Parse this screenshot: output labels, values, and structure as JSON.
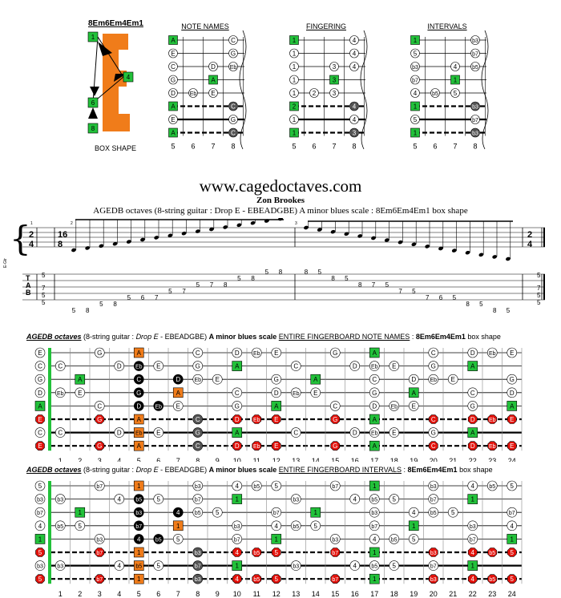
{
  "box": {
    "name": "8Em6Em4Em1",
    "caption": "BOX SHAPE",
    "markers": [
      "1",
      "4",
      "6",
      "8"
    ]
  },
  "diagrams": [
    {
      "title": "NOTE NAMES",
      "frets": [
        "5",
        "6",
        "7",
        "8"
      ],
      "rows": [
        [
          {
            "f": 0,
            "t": "A",
            "k": "root"
          },
          {
            "f": 3,
            "t": "C",
            "k": "open"
          }
        ],
        [
          {
            "f": 0,
            "t": "E",
            "k": "open"
          },
          {
            "f": 3,
            "t": "G",
            "k": "open"
          }
        ],
        [
          {
            "f": 0,
            "t": "C",
            "k": "open"
          },
          {
            "f": 2,
            "t": "D",
            "k": "open"
          },
          {
            "f": 3,
            "t": "Eb",
            "k": "open"
          }
        ],
        [
          {
            "f": 0,
            "t": "G",
            "k": "open"
          },
          {
            "f": 2,
            "t": "A",
            "k": "root"
          }
        ],
        [
          {
            "f": 0,
            "t": "D",
            "k": "open"
          },
          {
            "f": 1,
            "t": "Eb",
            "k": "open"
          },
          {
            "f": 2,
            "t": "E",
            "k": "open"
          }
        ],
        [
          {
            "f": 0,
            "t": "A",
            "k": "root"
          },
          {
            "f": 3,
            "t": "C",
            "k": "dark"
          }
        ],
        [
          {
            "f": 0,
            "t": "E",
            "k": "open"
          },
          {
            "f": 3,
            "t": "G",
            "k": "open"
          }
        ],
        [
          {
            "f": 0,
            "t": "A",
            "k": "root"
          },
          {
            "f": 3,
            "t": "C",
            "k": "dark"
          }
        ]
      ]
    },
    {
      "title": "FINGERING",
      "frets": [
        "5",
        "6",
        "7",
        "8"
      ],
      "rows": [
        [
          {
            "f": 0,
            "t": "1",
            "k": "root"
          },
          {
            "f": 3,
            "t": "4",
            "k": "open"
          }
        ],
        [
          {
            "f": 0,
            "t": "1",
            "k": "open"
          },
          {
            "f": 3,
            "t": "4",
            "k": "open"
          }
        ],
        [
          {
            "f": 0,
            "t": "1",
            "k": "open"
          },
          {
            "f": 2,
            "t": "3",
            "k": "open"
          },
          {
            "f": 3,
            "t": "4",
            "k": "open"
          }
        ],
        [
          {
            "f": 0,
            "t": "1",
            "k": "open"
          },
          {
            "f": 2,
            "t": "3",
            "k": "root"
          }
        ],
        [
          {
            "f": 0,
            "t": "1",
            "k": "open"
          },
          {
            "f": 1,
            "t": "2",
            "k": "open"
          },
          {
            "f": 2,
            "t": "3",
            "k": "open"
          }
        ],
        [
          {
            "f": 0,
            "t": "2",
            "k": "root"
          },
          {
            "f": 3,
            "t": "4",
            "k": "dark"
          }
        ],
        [
          {
            "f": 0,
            "t": "1",
            "k": "open"
          },
          {
            "f": 3,
            "t": "4",
            "k": "open"
          }
        ],
        [
          {
            "f": 0,
            "t": "1",
            "k": "root"
          },
          {
            "f": 3,
            "t": "3",
            "k": "dark"
          }
        ]
      ]
    },
    {
      "title": "INTERVALS",
      "frets": [
        "5",
        "6",
        "7",
        "8"
      ],
      "rows": [
        [
          {
            "f": 0,
            "t": "1",
            "k": "root"
          },
          {
            "f": 3,
            "t": "b3",
            "k": "open"
          }
        ],
        [
          {
            "f": 0,
            "t": "5",
            "k": "open"
          },
          {
            "f": 3,
            "t": "b7",
            "k": "open"
          }
        ],
        [
          {
            "f": 0,
            "t": "b3",
            "k": "open"
          },
          {
            "f": 2,
            "t": "4",
            "k": "open"
          },
          {
            "f": 3,
            "t": "b5",
            "k": "open"
          }
        ],
        [
          {
            "f": 0,
            "t": "b7",
            "k": "open"
          },
          {
            "f": 2,
            "t": "1",
            "k": "root"
          }
        ],
        [
          {
            "f": 0,
            "t": "4",
            "k": "open"
          },
          {
            "f": 1,
            "t": "b5",
            "k": "open"
          },
          {
            "f": 2,
            "t": "5",
            "k": "open"
          }
        ],
        [
          {
            "f": 0,
            "t": "1",
            "k": "root"
          },
          {
            "f": 3,
            "t": "b3",
            "k": "dark"
          }
        ],
        [
          {
            "f": 0,
            "t": "5",
            "k": "open"
          },
          {
            "f": 3,
            "t": "b7",
            "k": "open"
          }
        ],
        [
          {
            "f": 0,
            "t": "1",
            "k": "root"
          },
          {
            "f": 3,
            "t": "b3",
            "k": "dark"
          }
        ]
      ]
    }
  ],
  "header": {
    "site": "www.cagedoctaves.com",
    "author": "Zon Brookes",
    "subtitle": "AGEDB octaves (8-string guitar : Drop E - EBEADGBE) A minor blues scale : 8Em6Em4Em1 box shape"
  },
  "staff": {
    "time_open": "2/4",
    "time_main": "16/8",
    "time_close": "2/4",
    "measure_nums": [
      "1",
      "2",
      "3"
    ],
    "tab_letters": [
      "T",
      "A",
      "B"
    ],
    "side_label": "E-Gtr",
    "tab_open": [
      "5",
      "7",
      "5",
      "5"
    ],
    "tab_close": [
      "5",
      "7",
      "5",
      "5"
    ],
    "asc": [
      "5",
      "8",
      "5",
      "8",
      "5",
      "6",
      "7",
      "5",
      "7",
      "5",
      "7",
      "8",
      "5",
      "8",
      "5",
      "8"
    ],
    "desc": [
      "8",
      "5",
      "8",
      "5",
      "8",
      "7",
      "5",
      "7",
      "5",
      "7",
      "6",
      "5",
      "8",
      "5",
      "8",
      "5"
    ]
  },
  "fb_common": {
    "frets": [
      "1",
      "2",
      "3",
      "4",
      "5",
      "6",
      "7",
      "8",
      "9",
      "10",
      "11",
      "12",
      "13",
      "14",
      "15",
      "16",
      "17",
      "18",
      "19",
      "20",
      "21",
      "22",
      "23",
      "24"
    ],
    "title_pre": "AGEDB octaves",
    "title_mid1": " (8-string guitar : ",
    "title_drop": "Drop E",
    "title_mid2": " - EBEADGBE) ",
    "title_scale": "A minor blues scale ",
    "title_box": "8Em6Em4Em1",
    "title_end": " box shape"
  },
  "fb_notes": {
    "title_kind": "ENTIRE FINGERBOARD NOTE NAMES",
    "open": [
      "E",
      "C",
      "G",
      "D",
      "A",
      "E",
      "C",
      "E"
    ],
    "rows": [
      [
        "",
        "",
        "G",
        "",
        "A",
        "",
        "",
        "C",
        "",
        "D",
        "Eb",
        "E",
        "",
        "",
        "G",
        "",
        "A",
        "",
        "",
        "C",
        "",
        "D",
        "Eb",
        "E"
      ],
      [
        "C",
        "",
        "",
        "D",
        "Eb",
        "E",
        "",
        "G",
        "",
        "A",
        "",
        "",
        "C",
        "",
        "",
        "D",
        "Eb",
        "E",
        "",
        "G",
        "",
        "A",
        "",
        ""
      ],
      [
        "",
        "A",
        "",
        "",
        "C",
        "",
        "D",
        "Eb",
        "E",
        "",
        "",
        "G",
        "",
        "A",
        "",
        "",
        "C",
        "",
        "D",
        "Eb",
        "E",
        "",
        "",
        "G"
      ],
      [
        "Eb",
        "E",
        "",
        "",
        "G",
        "",
        "A",
        "",
        "",
        "C",
        "",
        "D",
        "Eb",
        "E",
        "",
        "",
        "G",
        "",
        "A",
        "",
        "",
        "C",
        "",
        "D"
      ],
      [
        "",
        "",
        "C",
        "",
        "D",
        "Eb",
        "E",
        "",
        "",
        "G",
        "",
        "A",
        "",
        "",
        "C",
        "",
        "D",
        "Eb",
        "E",
        "",
        "",
        "G",
        "",
        "A"
      ],
      [
        "",
        "",
        "G",
        "",
        "A",
        "",
        "",
        "C",
        "",
        "D",
        "Eb",
        "E",
        "",
        "",
        "G",
        "",
        "A",
        "",
        "",
        "C",
        "",
        "D",
        "Eb",
        "E"
      ],
      [
        "C",
        "",
        "",
        "D",
        "Eb",
        "E",
        "",
        "G",
        "",
        "A",
        "",
        "",
        "C",
        "",
        "",
        "D",
        "Eb",
        "E",
        "",
        "G",
        "",
        "A",
        "",
        ""
      ],
      [
        "",
        "",
        "G",
        "",
        "A",
        "",
        "",
        "C",
        "",
        "D",
        "Eb",
        "E",
        "",
        "",
        "G",
        "",
        "A",
        "",
        "",
        "C",
        "",
        "D",
        "Eb",
        "E"
      ]
    ]
  },
  "fb_intervals": {
    "title_kind": "ENTIRE FINGERBOARD INTERVALS",
    "open": [
      "5",
      "b3",
      "b7",
      "4",
      "1",
      "5",
      "b3",
      "5"
    ],
    "rows": [
      [
        "",
        "",
        "b7",
        "",
        "1",
        "",
        "",
        "b3",
        "",
        "4",
        "b5",
        "5",
        "",
        "",
        "b7",
        "",
        "1",
        "",
        "",
        "b3",
        "",
        "4",
        "b5",
        "5"
      ],
      [
        "b3",
        "",
        "",
        "4",
        "b5",
        "5",
        "",
        "b7",
        "",
        "1",
        "",
        "",
        "b3",
        "",
        "",
        "4",
        "b5",
        "5",
        "",
        "b7",
        "",
        "1",
        "",
        ""
      ],
      [
        "",
        "1",
        "",
        "",
        "b3",
        "",
        "4",
        "b5",
        "5",
        "",
        "",
        "b7",
        "",
        "1",
        "",
        "",
        "b3",
        "",
        "4",
        "b5",
        "5",
        "",
        "",
        "b7"
      ],
      [
        "b5",
        "5",
        "",
        "",
        "b7",
        "",
        "1",
        "",
        "",
        "b3",
        "",
        "4",
        "b5",
        "5",
        "",
        "",
        "b7",
        "",
        "1",
        "",
        "",
        "b3",
        "",
        "4"
      ],
      [
        "",
        "",
        "b3",
        "",
        "4",
        "b5",
        "5",
        "",
        "",
        "b7",
        "",
        "1",
        "",
        "",
        "b3",
        "",
        "4",
        "b5",
        "5",
        "",
        "",
        "b7",
        "",
        "1"
      ],
      [
        "",
        "",
        "b7",
        "",
        "1",
        "",
        "",
        "b3",
        "",
        "4",
        "b5",
        "5",
        "",
        "",
        "b7",
        "",
        "1",
        "",
        "",
        "b3",
        "",
        "4",
        "b5",
        "5"
      ],
      [
        "b3",
        "",
        "",
        "4",
        "b5",
        "5",
        "",
        "b7",
        "",
        "1",
        "",
        "",
        "b3",
        "",
        "",
        "4",
        "b5",
        "5",
        "",
        "b7",
        "",
        "1",
        "",
        ""
      ],
      [
        "",
        "",
        "b7",
        "",
        "1",
        "",
        "",
        "b3",
        "",
        "4",
        "b5",
        "5",
        "",
        "",
        "b7",
        "",
        "1",
        "",
        "",
        "b3",
        "",
        "4",
        "b5",
        "5"
      ]
    ]
  },
  "colors": {
    "root": "#22c13a",
    "orange": "#f07c1a",
    "red": "#e3120b",
    "dark": "#555555",
    "black": "#000000",
    "open": "#ffffff"
  }
}
